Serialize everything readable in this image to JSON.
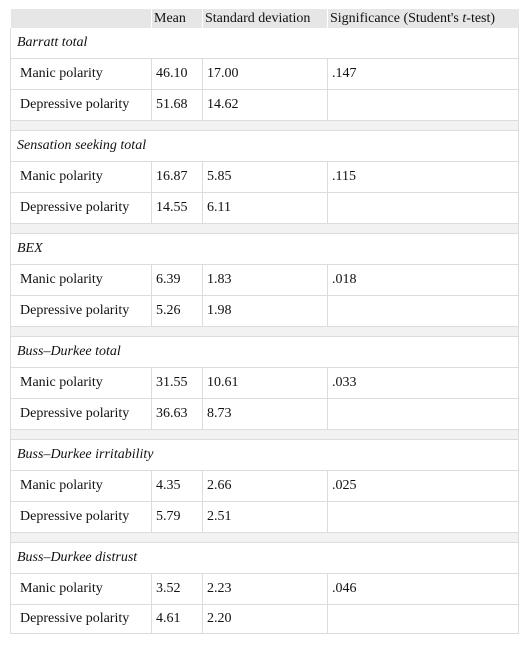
{
  "table": {
    "headers": [
      "",
      "Mean",
      "Standard deviation",
      "Significance (Student's ",
      "t",
      "-test)"
    ],
    "sections": [
      {
        "title": "Barratt total",
        "rows": [
          {
            "label": "Manic polarity",
            "mean": "46.10",
            "sd": "17.00",
            "sig": ".147"
          },
          {
            "label": "Depressive polarity",
            "mean": "51.68",
            "sd": "14.62",
            "sig": ""
          }
        ]
      },
      {
        "title": "Sensation seeking total",
        "rows": [
          {
            "label": "Manic polarity",
            "mean": "16.87",
            "sd": "5.85",
            "sig": ".115"
          },
          {
            "label": "Depressive polarity",
            "mean": "14.55",
            "sd": "6.11",
            "sig": ""
          }
        ]
      },
      {
        "title": "BEX",
        "rows": [
          {
            "label": "Manic polarity",
            "mean": "6.39",
            "sd": "1.83",
            "sig": ".018"
          },
          {
            "label": "Depressive polarity",
            "mean": "5.26",
            "sd": "1.98",
            "sig": ""
          }
        ]
      },
      {
        "title": "Buss–Durkee total",
        "rows": [
          {
            "label": "Manic polarity",
            "mean": "31.55",
            "sd": "10.61",
            "sig": ".033"
          },
          {
            "label": "Depressive polarity",
            "mean": "36.63",
            "sd": "8.73",
            "sig": ""
          }
        ]
      },
      {
        "title": "Buss–Durkee irritability",
        "rows": [
          {
            "label": "Manic polarity",
            "mean": "4.35",
            "sd": "2.66",
            "sig": ".025"
          },
          {
            "label": "Depressive polarity",
            "mean": "5.79",
            "sd": "2.51",
            "sig": ""
          }
        ]
      },
      {
        "title": "Buss–Durkee distrust",
        "rows": [
          {
            "label": "Manic polarity",
            "mean": "3.52",
            "sd": "2.23",
            "sig": ".046"
          },
          {
            "label": "Depressive polarity",
            "mean": "4.61",
            "sd": "2.20",
            "sig": ""
          }
        ]
      }
    ]
  }
}
